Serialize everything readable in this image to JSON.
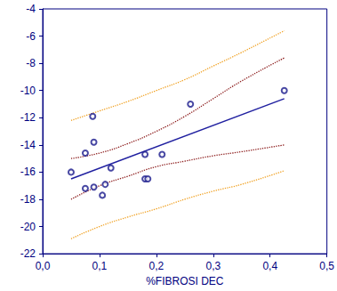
{
  "chart_data": {
    "type": "scatter",
    "x_label": "%FIBROSI DEC",
    "xlim": [
      0,
      0.5
    ],
    "xticks": [
      {
        "value": 0,
        "label": "0,0"
      },
      {
        "value": 0.1,
        "label": "0,1"
      },
      {
        "value": 0.2,
        "label": "0,2"
      },
      {
        "value": 0.3,
        "label": "0,3"
      },
      {
        "value": 0.4,
        "label": "0,4"
      },
      {
        "value": 0.5,
        "label": "0,5"
      }
    ],
    "ylim": [
      -22,
      -4
    ],
    "yticks": [
      -22,
      -20,
      -18,
      -16,
      -14,
      -12,
      -10,
      -8,
      -6,
      -4
    ],
    "grid": false,
    "series": [
      {
        "type": "scatter",
        "color": "#1a1a8c",
        "marker": "open_circle",
        "x": [
          0.05,
          0.075,
          0.075,
          0.088,
          0.09,
          0.09,
          0.105,
          0.11,
          0.12,
          0.18,
          0.18,
          0.185,
          0.21,
          0.26,
          0.425
        ],
        "values": [
          -16.0,
          -14.6,
          -17.2,
          -11.9,
          -13.8,
          -17.1,
          -17.7,
          -16.9,
          -15.7,
          -14.7,
          -16.5,
          -16.5,
          -14.7,
          -11.0,
          -10.0
        ]
      },
      {
        "type": "line",
        "color": "#2020a0",
        "line_style": "solid",
        "x": [
          0.05,
          0.425
        ],
        "values": [
          -16.5,
          -10.6
        ]
      },
      {
        "type": "line",
        "color": "#8b1a1a",
        "line_style": "dotted",
        "x": [
          0.05,
          0.1,
          0.15,
          0.2,
          0.25,
          0.3,
          0.35,
          0.425
        ],
        "values": [
          -15.0,
          -14.6,
          -13.9,
          -13.0,
          -11.9,
          -10.6,
          -9.3,
          -7.6
        ]
      },
      {
        "type": "line",
        "color": "#8b1a1a",
        "line_style": "dotted",
        "x": [
          0.05,
          0.1,
          0.15,
          0.2,
          0.25,
          0.3,
          0.35,
          0.425
        ],
        "values": [
          -18.0,
          -17.0,
          -16.3,
          -15.6,
          -15.2,
          -14.8,
          -14.5,
          -14.0
        ]
      },
      {
        "type": "line",
        "color": "#f0a020",
        "line_style": "dotted",
        "x": [
          0.05,
          0.1,
          0.15,
          0.2,
          0.25,
          0.3,
          0.35,
          0.425
        ],
        "values": [
          -12.2,
          -11.5,
          -10.8,
          -10.0,
          -9.2,
          -8.2,
          -7.2,
          -5.6
        ]
      },
      {
        "type": "line",
        "color": "#f0a020",
        "line_style": "dotted",
        "x": [
          0.05,
          0.1,
          0.15,
          0.2,
          0.25,
          0.3,
          0.35,
          0.425
        ],
        "values": [
          -20.9,
          -20.0,
          -19.3,
          -18.7,
          -18.0,
          -17.4,
          -16.9,
          -15.9
        ]
      }
    ]
  }
}
